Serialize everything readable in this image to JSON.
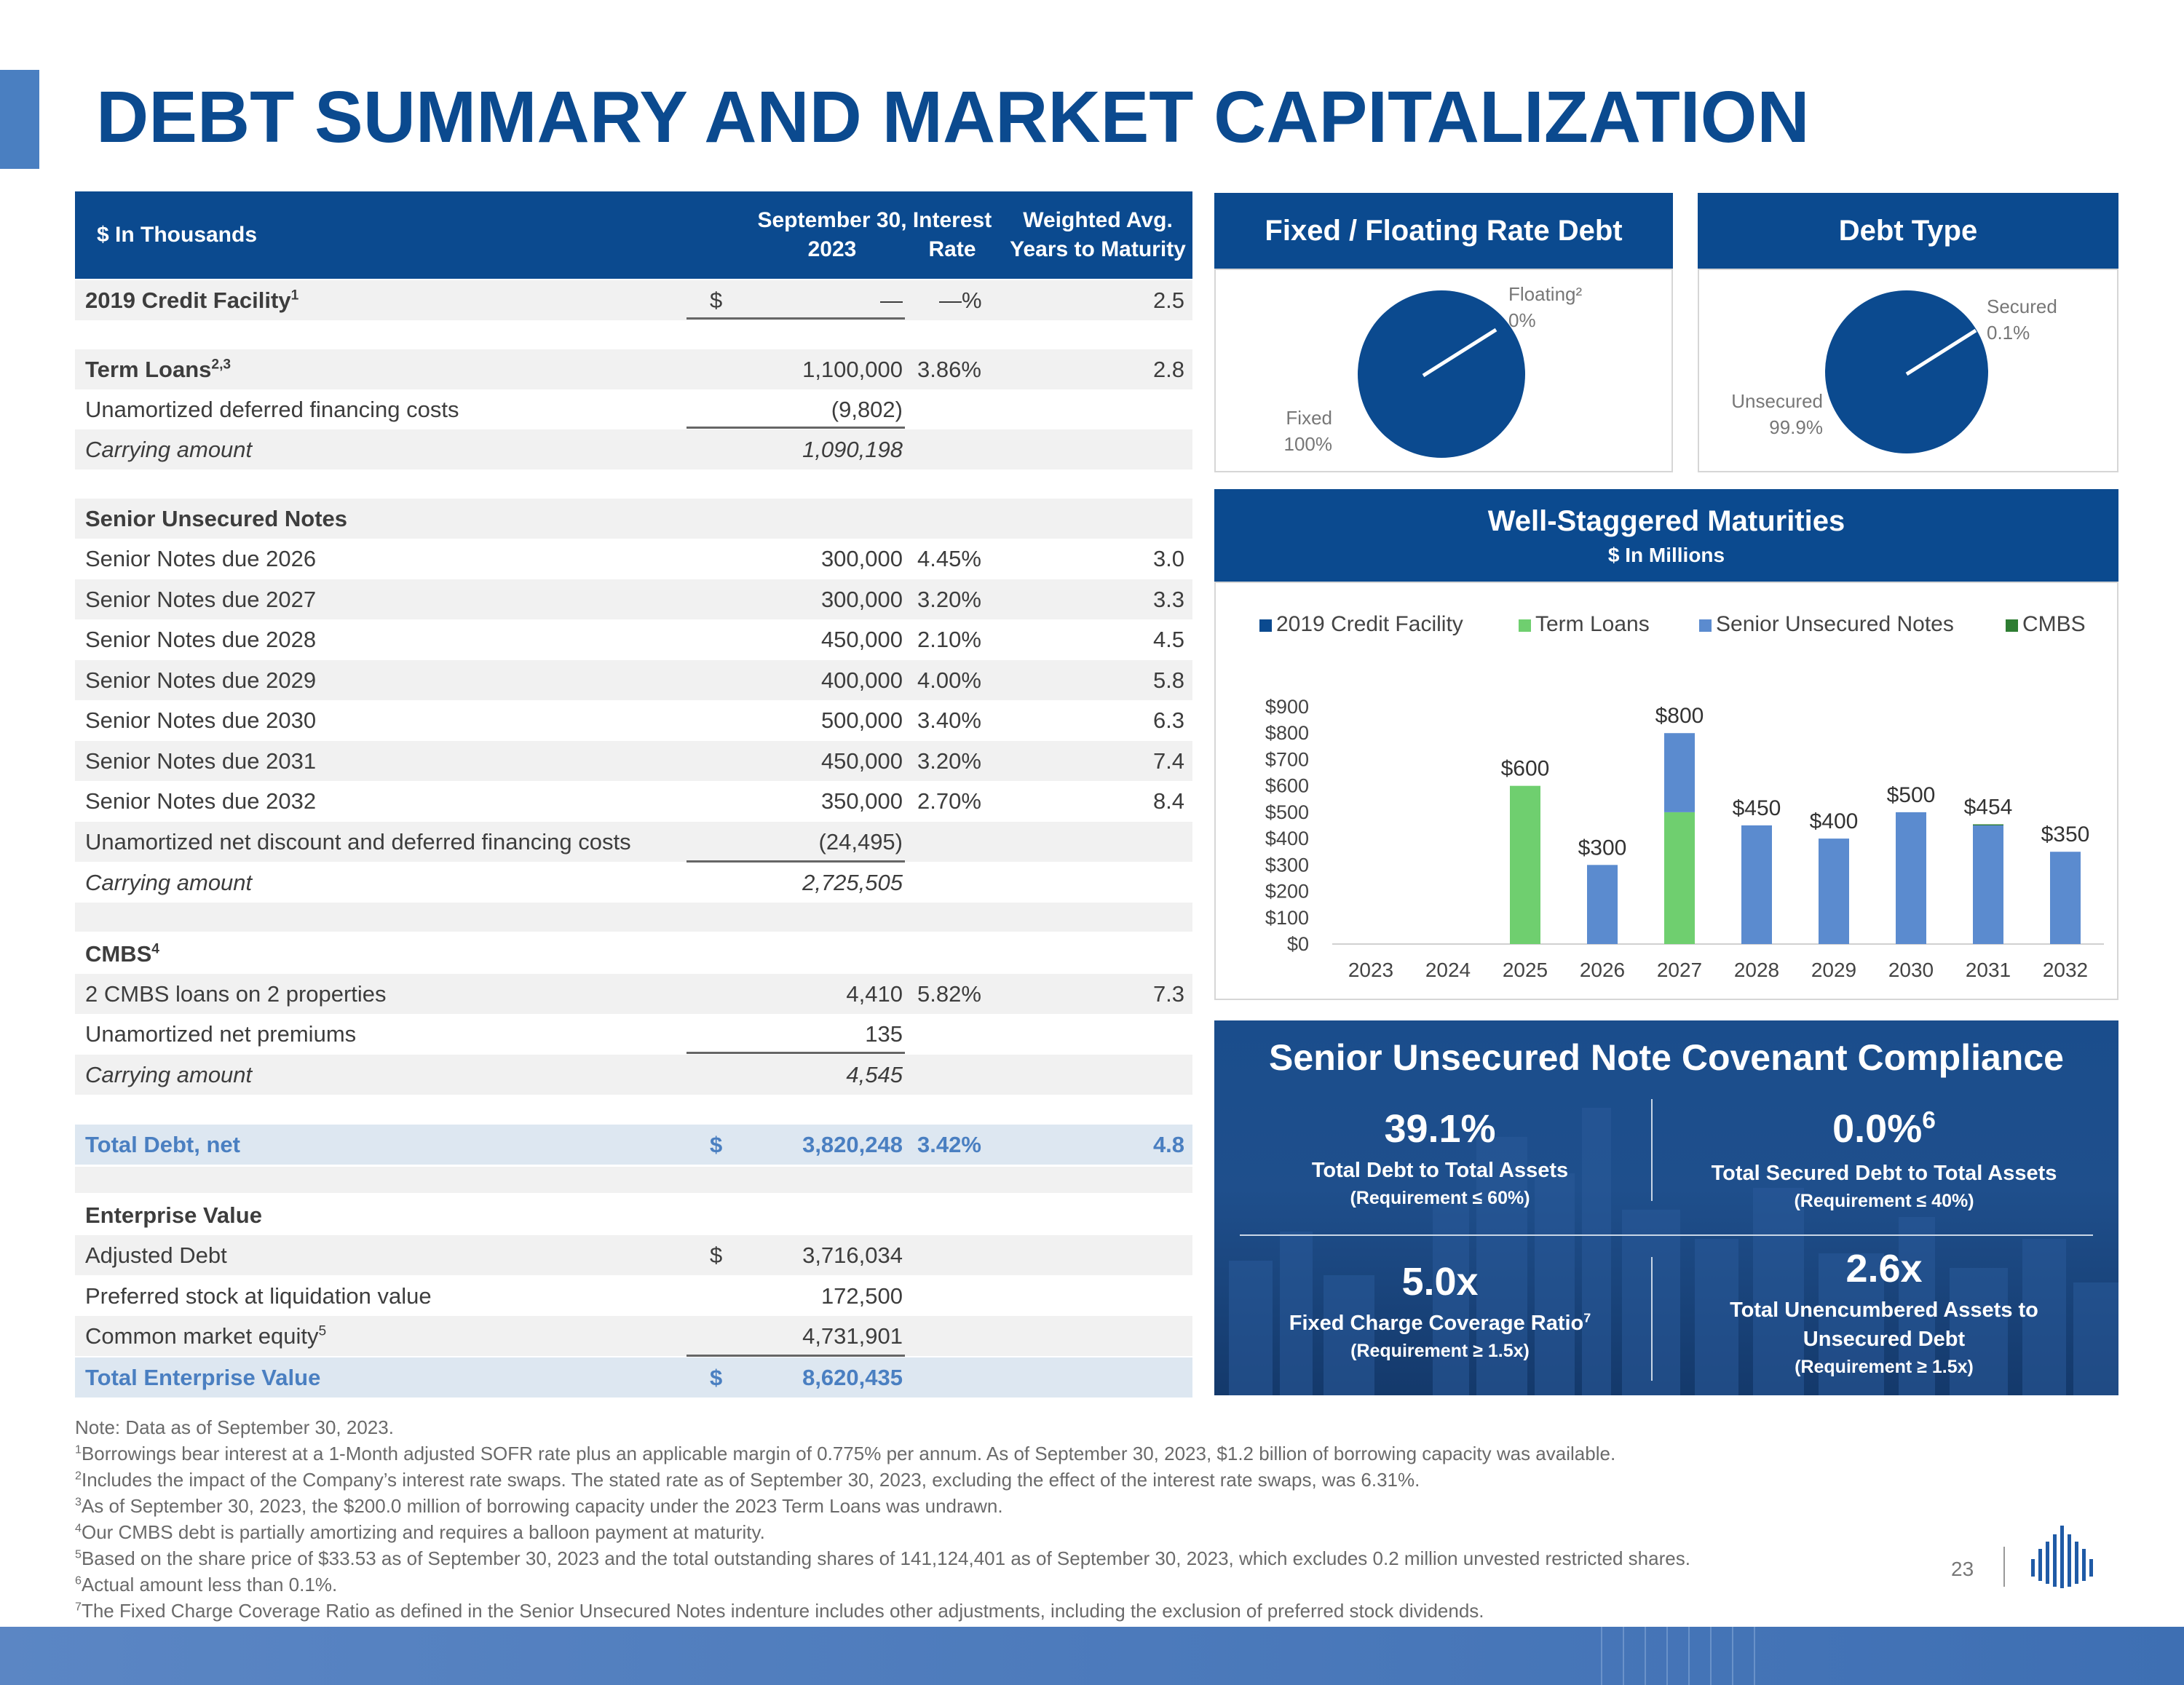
{
  "title": "DEBT SUMMARY AND MARKET CAPITALIZATION",
  "table": {
    "header": {
      "col1": "$ In Thousands",
      "col2_line1": "September 30,",
      "col2_line2": "2023",
      "col3_line1": "Interest",
      "col3_line2": "Rate",
      "col4_line1": "Weighted Avg.",
      "col4_line2": "Years to Maturity"
    },
    "rows": {
      "credit_facility": {
        "label": "2019 Credit Facility",
        "sup": "1",
        "dollar": "$",
        "amount": "—",
        "rate": "—%",
        "years": "2.5"
      },
      "term_loans": {
        "label": "Term Loans",
        "sup": "2,3",
        "amount": "1,100,000",
        "rate": "3.86%",
        "years": "2.8"
      },
      "unamortized_dfc": {
        "label": "Unamortized deferred financing costs",
        "amount": "(9,802)"
      },
      "tl_carrying": {
        "label": "Carrying amount",
        "amount": "1,090,198"
      },
      "sun_header": {
        "label": "Senior Unsecured Notes"
      },
      "sn2026": {
        "label": "Senior Notes due 2026",
        "amount": "300,000",
        "rate": "4.45%",
        "years": "3.0"
      },
      "sn2027": {
        "label": "Senior Notes due 2027",
        "amount": "300,000",
        "rate": "3.20%",
        "years": "3.3"
      },
      "sn2028": {
        "label": "Senior Notes due 2028",
        "amount": "450,000",
        "rate": "2.10%",
        "years": "4.5"
      },
      "sn2029": {
        "label": "Senior Notes due 2029",
        "amount": "400,000",
        "rate": "4.00%",
        "years": "5.8"
      },
      "sn2030": {
        "label": "Senior Notes due 2030",
        "amount": "500,000",
        "rate": "3.40%",
        "years": "6.3"
      },
      "sn2031": {
        "label": "Senior Notes due 2031",
        "amount": "450,000",
        "rate": "3.20%",
        "years": "7.4"
      },
      "sn2032": {
        "label": "Senior Notes due 2032",
        "amount": "350,000",
        "rate": "2.70%",
        "years": "8.4"
      },
      "sn_unamortized": {
        "label": "Unamortized net discount and deferred financing costs",
        "amount": "(24,495)"
      },
      "sn_carrying": {
        "label": "Carrying amount",
        "amount": "2,725,505"
      },
      "cmbs_header": {
        "label": "CMBS",
        "sup": "4"
      },
      "cmbs_loans": {
        "label": "2 CMBS loans on 2 properties",
        "amount": "4,410",
        "rate": "5.82%",
        "years": "7.3"
      },
      "cmbs_premiums": {
        "label": "Unamortized net premiums",
        "amount": "135"
      },
      "cmbs_carrying": {
        "label": "Carrying amount",
        "amount": "4,545"
      },
      "total_debt": {
        "label": "Total Debt, net",
        "dollar": "$",
        "amount": "3,820,248",
        "rate": "3.42%",
        "years": "4.8"
      },
      "ev_header": {
        "label": "Enterprise Value"
      },
      "adjusted_debt": {
        "label": "Adjusted Debt",
        "dollar": "$",
        "amount": "3,716,034"
      },
      "preferred": {
        "label": "Preferred stock at liquidation value",
        "amount": "172,500"
      },
      "common_equity": {
        "label": "Common market equity",
        "sup": "5",
        "amount": "4,731,901"
      },
      "total_ev": {
        "label": "Total Enterprise Value",
        "dollar": "$",
        "amount": "8,620,435"
      }
    }
  },
  "fixed_floating": {
    "title": "Fixed / Floating Rate Debt",
    "floating_label": "Floating²",
    "floating_value": "0%",
    "fixed_label": "Fixed",
    "fixed_value": "100%",
    "color": "#0b4a8f"
  },
  "debt_type": {
    "title": "Debt Type",
    "secured_label": "Secured",
    "secured_value": "0.1%",
    "unsecured_label": "Unsecured",
    "unsecured_value": "99.9%",
    "color": "#0b4a8f"
  },
  "maturities": {
    "title": "Well-Staggered Maturities",
    "subtitle": "$ In Millions"
  },
  "chart_data": {
    "type": "bar",
    "stacked": true,
    "title": "Well-Staggered Maturities",
    "subtitle": "$ In Millions",
    "categories": [
      "2023",
      "2024",
      "2025",
      "2026",
      "2027",
      "2028",
      "2029",
      "2030",
      "2031",
      "2032"
    ],
    "series": [
      {
        "name": "2019 Credit Facility",
        "color": "#0b4a8f",
        "values": [
          0,
          0,
          0,
          0,
          0,
          0,
          0,
          0,
          0,
          0
        ]
      },
      {
        "name": "Term Loans",
        "color": "#6fcf6f",
        "values": [
          0,
          0,
          600,
          0,
          500,
          0,
          0,
          0,
          0,
          0
        ]
      },
      {
        "name": "Senior Unsecured Notes",
        "color": "#5b8bcf",
        "values": [
          0,
          0,
          0,
          300,
          300,
          450,
          400,
          500,
          450,
          350
        ]
      },
      {
        "name": "CMBS",
        "color": "#2e7d32",
        "values": [
          0,
          0,
          0,
          0,
          0,
          0,
          0,
          0,
          4,
          0
        ]
      }
    ],
    "totals": [
      "",
      "",
      "$600",
      "$300",
      "$800",
      "$450",
      "$400",
      "$500",
      "$454",
      "$350"
    ],
    "y_ticks": [
      "$0",
      "$100",
      "$200",
      "$300",
      "$400",
      "$500",
      "$600",
      "$700",
      "$800",
      "$900"
    ],
    "ylim": [
      0,
      900
    ],
    "legend_position": "top"
  },
  "covenant": {
    "title": "Senior Unsecured Note Covenant Compliance",
    "m1_value": "39.1%",
    "m1_label": "Total Debt to Total Assets",
    "m1_req": "(Requirement ≤ 60%)",
    "m2_value": "0.0%",
    "m2_sup": "6",
    "m2_label": "Total Secured Debt to Total Assets",
    "m2_req": "(Requirement ≤ 40%)",
    "m3_value": "5.0x",
    "m3_label": "Fixed Charge Coverage Ratio",
    "m3_sup": "7",
    "m3_req": "(Requirement ≥ 1.5x)",
    "m4_value": "2.6x",
    "m4_label_1": "Total Unencumbered Assets to",
    "m4_label_2": "Unsecured Debt",
    "m4_req": "(Requirement ≥ 1.5x)"
  },
  "footnotes": {
    "note": "Note: Data as of September 30, 2023.",
    "f1": "Borrowings bear interest at a 1-Month adjusted SOFR rate plus an applicable margin of 0.775% per annum. As of September 30, 2023, $1.2 billion of borrowing capacity was available.",
    "f2": "Includes the impact of the Company’s interest rate swaps. The stated rate as of September 30, 2023, excluding the effect of the interest rate swaps, was 6.31%.",
    "f3": "As of September 30, 2023, the $200.0 million of borrowing capacity under the 2023 Term Loans was undrawn.",
    "f4": "Our CMBS debt is partially amortizing and requires a balloon payment at maturity.",
    "f5": "Based on the share price of $33.53 as of September 30, 2023 and the total outstanding shares of 141,124,401 as of September 30, 2023, which excludes 0.2 million unvested restricted shares.",
    "f6": "Actual amount less than 0.1%.",
    "f7": "The Fixed Charge Coverage Ratio as defined in the Senior Unsecured Notes indenture includes other adjustments, including the exclusion of preferred stock dividends."
  },
  "page_number": "23"
}
